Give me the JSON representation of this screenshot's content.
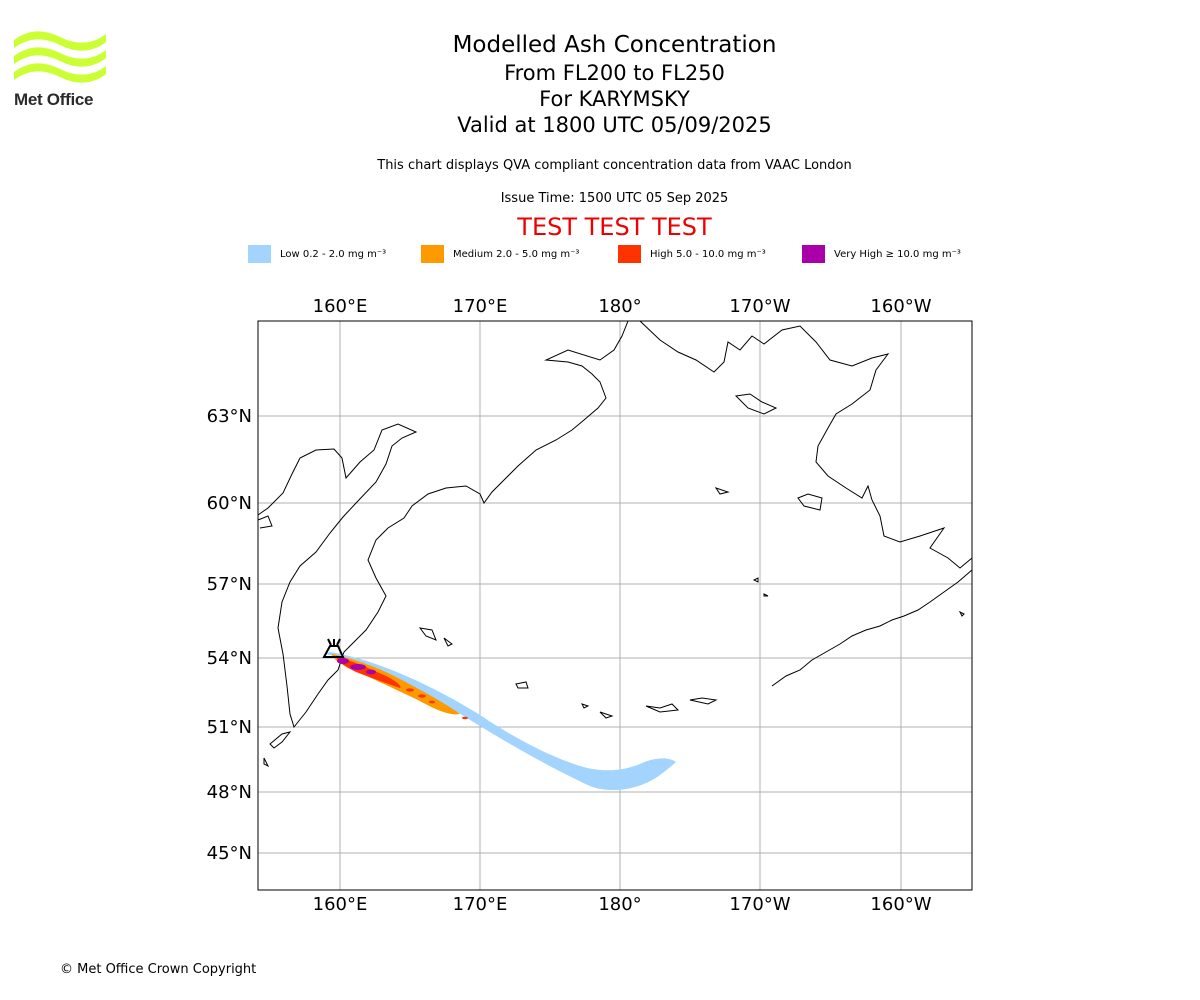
{
  "brand": {
    "logo_text": "Met Office",
    "logo_color": "#ccff33",
    "logo_icon": "wave-stripes-icon"
  },
  "title": {
    "main": "Modelled Ash Concentration",
    "levels": "From FL200 to FL250",
    "volcano": "For KARYMSKY",
    "valid": "Valid at 1800 UTC 05/09/2025"
  },
  "disclaimer": "This chart displays QVA compliant concentration data from VAAC London",
  "issue_time": "Issue Time: 1500 UTC 05 Sep 2025",
  "test_banner": "TEST TEST TEST",
  "legend": [
    {
      "label": "Low 0.2 - 2.0 mg m⁻³",
      "color": "#a3d4fd"
    },
    {
      "label": "Medium 2.0 - 5.0 mg m⁻³",
      "color": "#ff9900"
    },
    {
      "label": "High 5.0 - 10.0 mg m⁻³",
      "color": "#ff3300"
    },
    {
      "label": "Very High ≥ 10.0 mg m⁻³",
      "color": "#aa00aa"
    }
  ],
  "map": {
    "lon_ticks": [
      "160°E",
      "170°E",
      "180°",
      "170°W",
      "160°W"
    ],
    "lat_ticks": [
      "63°N",
      "60°N",
      "57°N",
      "54°N",
      "51°N",
      "48°N",
      "45°N"
    ],
    "gridlines": true,
    "volcano_marker_icon": "volcano-icon",
    "volcano_location": {
      "lat": 54.05,
      "lon": 159.45
    }
  },
  "copyright": "© Met Office Crown Copyright"
}
